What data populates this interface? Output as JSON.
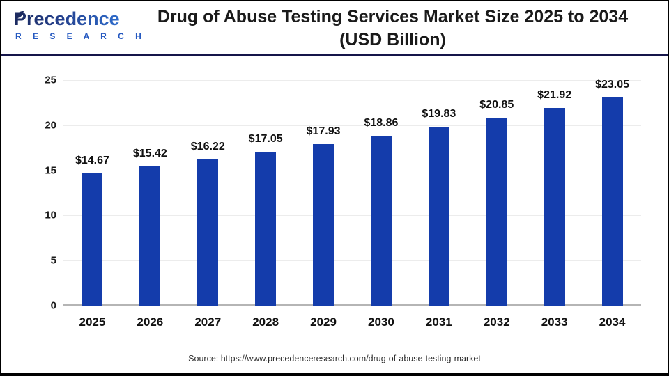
{
  "header": {
    "logo_name": "Precedence",
    "logo_sub": "R E S E A R C H",
    "title_line1": "Drug of Abuse Testing Services Market Size 2025 to 2034",
    "title_line2": "(USD Billion)"
  },
  "chart_data": {
    "type": "bar",
    "title": "Drug of Abuse Testing Services Market Size 2025 to 2034 (USD Billion)",
    "categories": [
      "2025",
      "2026",
      "2027",
      "2028",
      "2029",
      "2030",
      "2031",
      "2032",
      "2033",
      "2034"
    ],
    "values": [
      14.67,
      15.42,
      16.22,
      17.05,
      17.93,
      18.86,
      19.83,
      20.85,
      21.92,
      23.05
    ],
    "value_labels": [
      "$14.67",
      "$15.42",
      "$16.22",
      "$17.05",
      "$17.93",
      "$18.86",
      "$19.83",
      "$20.85",
      "$21.92",
      "$23.05"
    ],
    "xlabel": "",
    "ylabel": "",
    "ylim": [
      0,
      25
    ],
    "yticks": [
      0,
      5,
      10,
      15,
      20,
      25
    ],
    "grid": true,
    "legend": "none",
    "bar_color": "#143cab"
  },
  "footer": {
    "source": "Source: https://www.precedenceresearch.com/drug-of-abuse-testing-market"
  }
}
